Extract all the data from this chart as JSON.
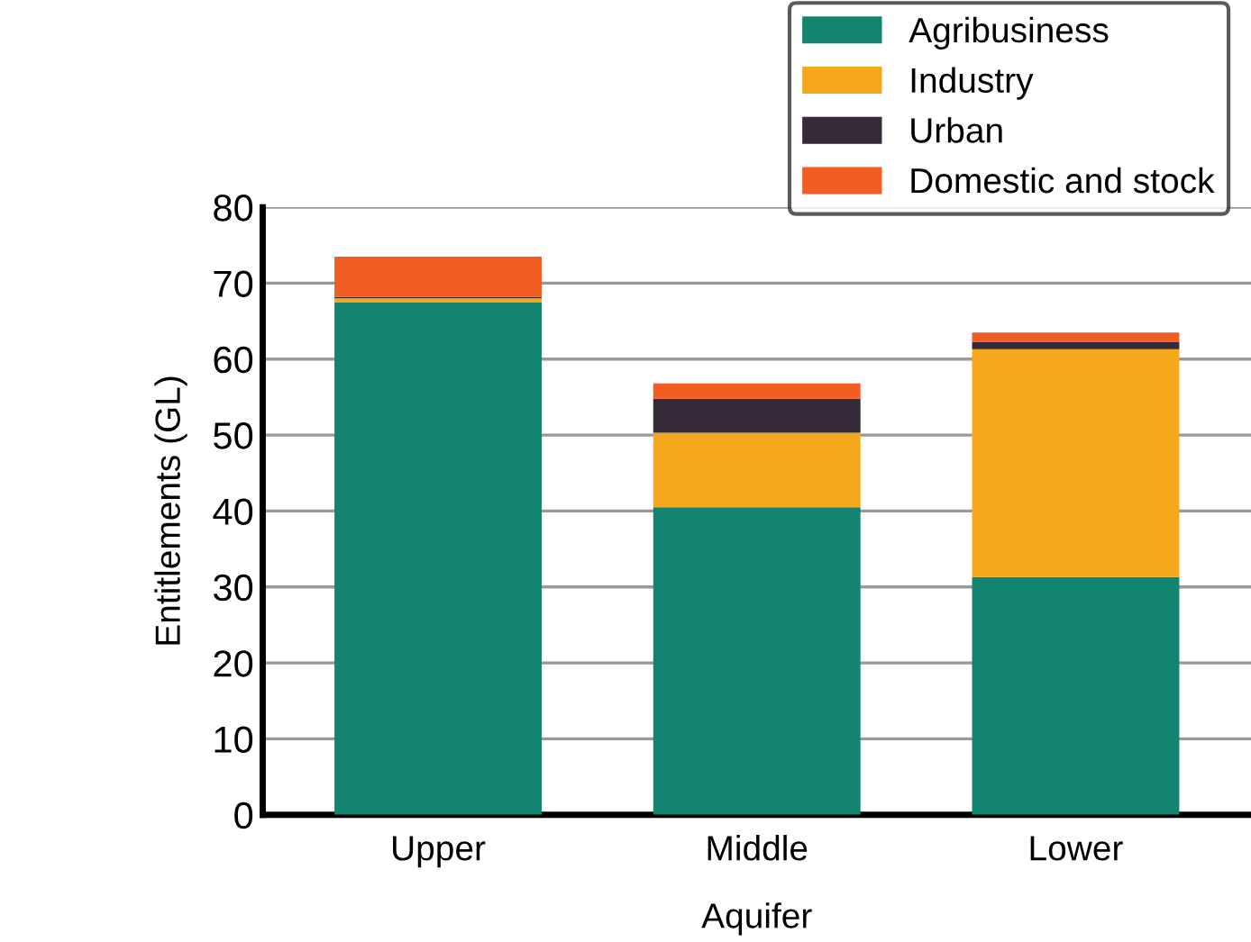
{
  "chart_data": {
    "type": "bar",
    "stacked": true,
    "xlabel": "Aquifer",
    "ylabel": "Entitlements (GL)",
    "categories": [
      "Upper",
      "Middle",
      "Lower"
    ],
    "series": [
      {
        "name": "Agribusiness",
        "color": "#12846f",
        "values": [
          67.5,
          40.5,
          31.3
        ]
      },
      {
        "name": "Industry",
        "color": "#f6a81c",
        "values": [
          0.5,
          9.8,
          30
        ]
      },
      {
        "name": "Urban",
        "color": "#352a38",
        "values": [
          0.2,
          4.5,
          1.0
        ]
      },
      {
        "name": "Domestic and stock",
        "color": "#f15d22",
        "values": [
          5.3,
          2.0,
          1.2
        ]
      }
    ],
    "ylim": [
      0,
      80
    ],
    "yticks": [
      0,
      10,
      20,
      30,
      40,
      50,
      60,
      70,
      80
    ],
    "grid": "y",
    "legend": "top right"
  }
}
